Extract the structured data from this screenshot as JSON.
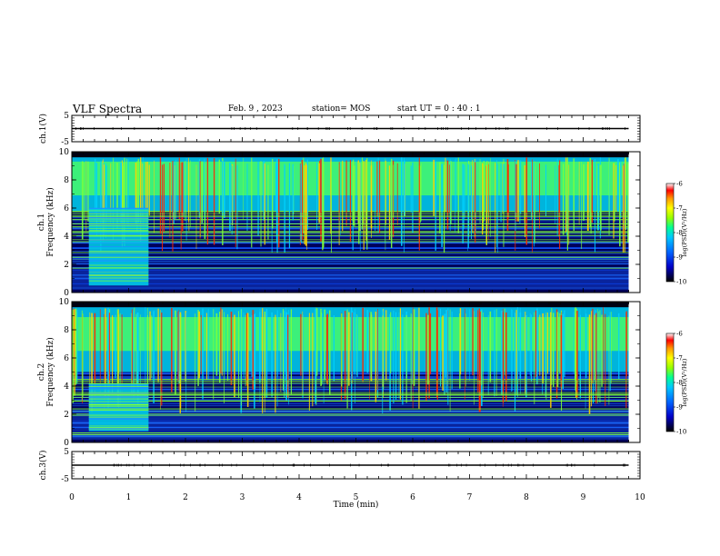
{
  "header": {
    "title": "VLF Spectra",
    "date": "Feb. 9 , 2023",
    "station": "station= MOS",
    "start": "start  UT =   0 : 40 : 1"
  },
  "chart_data": [
    {
      "type": "line",
      "panel": "ch1-voltage",
      "ylabel": "ch.1(V)",
      "ylim": [
        -5,
        5
      ],
      "yticks": [
        5,
        -5
      ],
      "xlim": [
        0,
        10
      ],
      "series": [
        {
          "x": [
            0,
            9.8
          ],
          "y": [
            0,
            0
          ],
          "color": "#000000"
        }
      ]
    },
    {
      "type": "heatmap",
      "panel": "ch1-spectrogram",
      "ylabel": "ch.1\nFrequency (kHz)",
      "ylim": [
        0,
        10
      ],
      "yticks": [
        0,
        2,
        4,
        6,
        8,
        10
      ],
      "xlim": [
        0,
        10
      ],
      "data_extent_min": 9.8,
      "noise_band_khz": [
        5.8,
        9.6
      ],
      "burst_band_khz": [
        0.5,
        6.0
      ],
      "burst_minutes": [
        0.3,
        1.35
      ],
      "colorbar": {
        "label": "log(PSD)(V²/Hz)",
        "range": [
          -10,
          -6
        ],
        "ticks": [
          -6,
          -7,
          -8,
          -9,
          -10
        ]
      }
    },
    {
      "type": "heatmap",
      "panel": "ch2-spectrogram",
      "ylabel": "ch.2\nFrequency (kHz)",
      "ylim": [
        0,
        10
      ],
      "yticks": [
        0,
        2,
        4,
        6,
        8,
        10
      ],
      "xlim": [
        0,
        10
      ],
      "data_extent_min": 9.8,
      "noise_band_khz": [
        5.0,
        9.6
      ],
      "burst_band_khz": [
        0.8,
        4.2
      ],
      "burst_minutes": [
        0.3,
        1.35
      ],
      "colorbar": {
        "label": "log(PSD)(V²/Hz)",
        "range": [
          -10,
          -6
        ],
        "ticks": [
          -6,
          -7,
          -8,
          -9,
          -10
        ]
      }
    },
    {
      "type": "line",
      "panel": "ch3-voltage",
      "ylabel": "ch.3(V)",
      "ylim": [
        -5,
        5
      ],
      "yticks": [
        5,
        -5
      ],
      "xlim": [
        0,
        10
      ],
      "xlabel": "Time  (min)",
      "xticks": [
        0,
        1,
        2,
        3,
        4,
        5,
        6,
        7,
        8,
        9,
        10
      ],
      "series": [
        {
          "x": [
            0,
            9.8
          ],
          "y": [
            0,
            0
          ],
          "color": "#000000"
        }
      ]
    }
  ],
  "colormap": [
    "#000040",
    "#0000c8",
    "#0064ff",
    "#00c8ff",
    "#00ff96",
    "#96ff00",
    "#ffff00",
    "#ff9600",
    "#ff0000",
    "#ffffff"
  ]
}
